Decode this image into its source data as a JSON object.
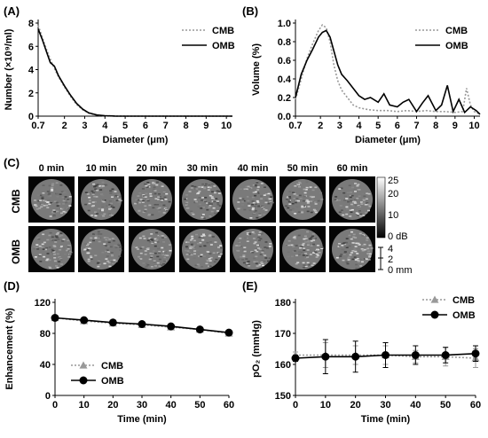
{
  "panels": {
    "A": {
      "label": "(A)"
    },
    "B": {
      "label": "(B)"
    },
    "C": {
      "label": "(C)",
      "time_labels": [
        "0 min",
        "10 min",
        "20 min",
        "30 min",
        "40 min",
        "50 min",
        "60 min"
      ],
      "row_labels": [
        "CMB",
        "OMB"
      ],
      "colorbar": {
        "ticks": [
          "25",
          "20",
          "10",
          "0 dB"
        ]
      },
      "scalebar": {
        "ticks": [
          "4",
          "2",
          "0 mm"
        ]
      }
    },
    "D": {
      "label": "(D)"
    },
    "E": {
      "label": "(E)"
    }
  },
  "colors": {
    "CMB": "#999999",
    "OMB": "#000000"
  },
  "chart_data": [
    {
      "id": "A",
      "type": "line",
      "xlabel": "Diameter (μm)",
      "ylabel": "Number (×10⁹/ml)",
      "xticks": [
        "0.7",
        "2",
        "3",
        "4",
        "5",
        "6",
        "7",
        "8",
        "9",
        "10"
      ],
      "xtick_values": [
        0.7,
        2,
        3,
        4,
        5,
        6,
        7,
        8,
        9,
        10
      ],
      "yticks": [
        0,
        2,
        4,
        6,
        8
      ],
      "xlim": [
        0.7,
        10.3
      ],
      "ylim": [
        0,
        8
      ],
      "legend": "top-right",
      "series": [
        {
          "name": "CMB",
          "style": "dotted",
          "x": [
            0.7,
            0.9,
            1.1,
            1.3,
            1.5,
            1.7,
            2.0,
            2.3,
            2.6,
            2.9,
            3.2,
            3.6,
            4.0,
            4.5,
            5,
            10.3
          ],
          "y": [
            7.8,
            6.8,
            5.8,
            4.9,
            4.1,
            3.4,
            2.5,
            1.7,
            1.0,
            0.55,
            0.25,
            0.08,
            0.03,
            0.01,
            0,
            0
          ]
        },
        {
          "name": "OMB",
          "style": "solid",
          "x": [
            0.7,
            0.9,
            1.1,
            1.3,
            1.5,
            1.7,
            2.0,
            2.3,
            2.6,
            2.9,
            3.2,
            3.6,
            4.0,
            4.5,
            5,
            10.3
          ],
          "y": [
            7.5,
            6.6,
            5.6,
            4.6,
            4.3,
            3.5,
            2.6,
            1.8,
            1.1,
            0.6,
            0.28,
            0.1,
            0.04,
            0.01,
            0,
            0
          ]
        }
      ]
    },
    {
      "id": "B",
      "type": "line",
      "xlabel": "Diameter (μm)",
      "ylabel": "Volume (%)",
      "xticks": [
        "0.7",
        "2",
        "3",
        "4",
        "5",
        "6",
        "7",
        "8",
        "9",
        "10"
      ],
      "xtick_values": [
        0.7,
        2,
        3,
        4,
        5,
        6,
        7,
        8,
        9,
        10
      ],
      "yticks": [
        "0.0",
        "0.2",
        "0.4",
        "0.6",
        "0.8",
        "1.0"
      ],
      "ytick_values": [
        0,
        0.2,
        0.4,
        0.6,
        0.8,
        1.0
      ],
      "xlim": [
        0.7,
        10.3
      ],
      "ylim": [
        0,
        1.0
      ],
      "legend": "top-right",
      "series": [
        {
          "name": "CMB",
          "style": "dotted",
          "x": [
            0.7,
            1.0,
            1.3,
            1.6,
            1.9,
            2.1,
            2.3,
            2.5,
            2.7,
            2.9,
            3.1,
            3.4,
            3.7,
            4.0,
            4.5,
            5.0,
            5.5,
            6.0,
            6.5,
            7.0,
            7.5,
            8.0,
            8.5,
            9.0,
            9.4,
            9.6,
            9.8,
            10.0,
            10.3
          ],
          "y": [
            0.18,
            0.4,
            0.62,
            0.78,
            0.92,
            0.98,
            0.95,
            0.8,
            0.55,
            0.38,
            0.28,
            0.2,
            0.12,
            0.09,
            0.07,
            0.06,
            0.06,
            0.05,
            0.06,
            0.05,
            0.06,
            0.05,
            0.05,
            0.04,
            0.05,
            0.3,
            0.12,
            0.05,
            0.02
          ]
        },
        {
          "name": "OMB",
          "style": "solid",
          "x": [
            0.7,
            1.0,
            1.3,
            1.6,
            1.9,
            2.1,
            2.3,
            2.5,
            2.7,
            2.9,
            3.1,
            3.4,
            3.7,
            4.0,
            4.3,
            4.6,
            5.0,
            5.3,
            5.6,
            6.0,
            6.3,
            6.6,
            7.0,
            7.3,
            7.6,
            8.0,
            8.3,
            8.6,
            8.9,
            9.2,
            9.5,
            9.8,
            10.1,
            10.3
          ],
          "y": [
            0.2,
            0.45,
            0.6,
            0.72,
            0.85,
            0.9,
            0.92,
            0.85,
            0.7,
            0.55,
            0.45,
            0.38,
            0.3,
            0.22,
            0.18,
            0.2,
            0.15,
            0.24,
            0.12,
            0.1,
            0.15,
            0.18,
            0.05,
            0.14,
            0.22,
            0.06,
            0.12,
            0.33,
            0.05,
            0.18,
            0.04,
            0.1,
            0.06,
            0.02
          ]
        }
      ]
    },
    {
      "id": "D",
      "type": "line",
      "xlabel": "Time (min)",
      "ylabel": "Enhancement (%)",
      "xticks": [
        0,
        10,
        20,
        30,
        40,
        50,
        60
      ],
      "yticks": [
        0,
        40,
        80,
        120
      ],
      "xlim": [
        0,
        60
      ],
      "ylim": [
        0,
        120
      ],
      "legend": "bottom-left",
      "categories": [
        0,
        10,
        20,
        30,
        40,
        50,
        60
      ],
      "series": [
        {
          "name": "CMB",
          "style": "dotted",
          "marker": "triangle",
          "values": [
            100,
            96,
            93,
            91,
            88,
            85,
            80
          ]
        },
        {
          "name": "OMB",
          "style": "solid",
          "marker": "circle",
          "values": [
            100,
            97,
            94,
            92,
            89,
            85,
            81
          ]
        }
      ]
    },
    {
      "id": "E",
      "type": "line",
      "xlabel": "Time (min)",
      "ylabel": "pO₂ (mmHg)",
      "xticks": [
        0,
        10,
        20,
        30,
        40,
        50,
        60
      ],
      "yticks": [
        150,
        160,
        170,
        180
      ],
      "xlim": [
        0,
        60
      ],
      "ylim": [
        150,
        180
      ],
      "legend": "top-left",
      "categories": [
        0,
        10,
        20,
        30,
        40,
        50,
        60
      ],
      "series": [
        {
          "name": "CMB",
          "style": "dotted",
          "marker": "triangle",
          "values": [
            163,
            163,
            163,
            163,
            162.5,
            162.5,
            162
          ],
          "errors": [
            1,
            4,
            3,
            3,
            2,
            3,
            3
          ]
        },
        {
          "name": "OMB",
          "style": "solid",
          "marker": "circle",
          "values": [
            162,
            162.5,
            162.5,
            163,
            163,
            163,
            163.5
          ],
          "errors": [
            1,
            5.5,
            5,
            4,
            3,
            2.5,
            2.5
          ]
        }
      ]
    }
  ]
}
